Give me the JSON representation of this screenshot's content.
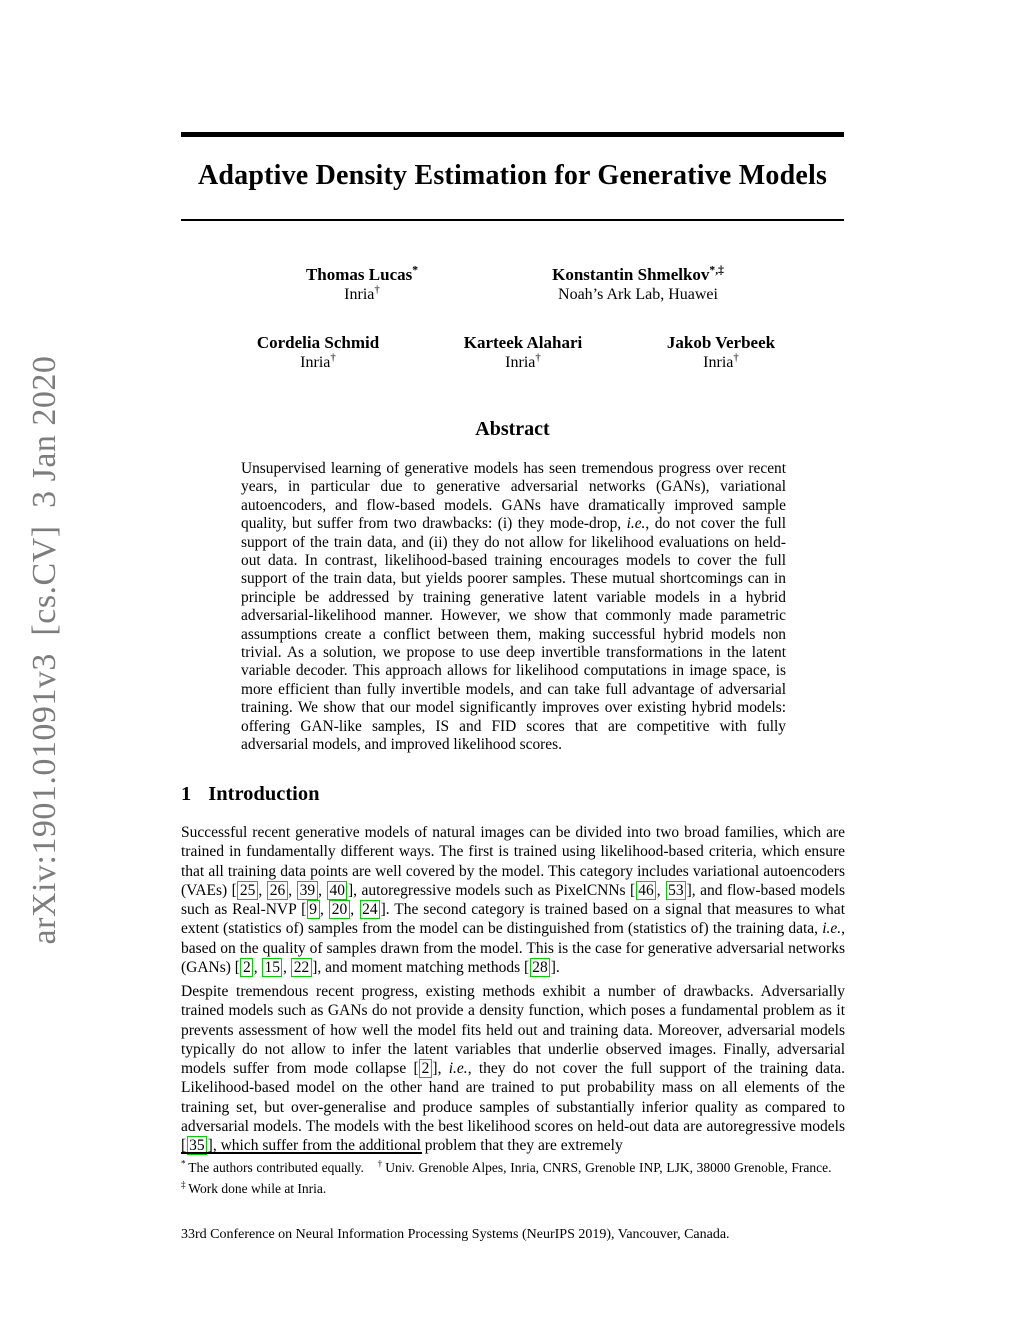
{
  "watermark": {
    "text": "arXiv:1901.01091v3 [cs.CV] 3 Jan 2020"
  },
  "header": {
    "title": "Adaptive Density Estimation for Generative Models"
  },
  "authors": {
    "row1": [
      {
        "name": "Thomas Lucas^*^",
        "affiliation": "Inria^†^"
      },
      {
        "name": "Konstantin Shmelkov^*,‡^",
        "affiliation": "Noah’s Ark Lab, Huawei"
      }
    ],
    "row2": [
      {
        "name": "Cordelia Schmid",
        "affiliation": "Inria^†^"
      },
      {
        "name": "Karteek Alahari",
        "affiliation": "Inria^†^"
      },
      {
        "name": "Jakob Verbeek",
        "affiliation": "Inria^†^"
      }
    ]
  },
  "abstract": {
    "heading": "Abstract",
    "body": "Unsupervised learning of generative models has seen tremendous progress over recent years, in particular due to generative adversarial networks (GANs), variational autoencoders, and flow-based models. GANs have dramatically improved sample quality, but suffer from two drawbacks: (i) they mode-drop, *i.e.*, do not cover the full support of the train data, and (ii) they do not allow for likelihood evaluations on held-out data. In contrast, likelihood-based training encourages models to cover the full support of the train data, but yields poorer samples. These mutual shortcomings can in principle be addressed by training generative latent variable models in a hybrid adversarial-likelihood manner. However, we show that commonly made parametric assumptions create a conflict between them, making successful hybrid models non trivial. As a solution, we propose to use deep invertible transformations in the latent variable decoder. This approach allows for likelihood computations in image space, is more efficient than fully invertible models, and can take full advantage of adversarial training. We show that our model significantly improves over existing hybrid models: offering GAN-like samples, IS and FID scores that are competitive with fully adversarial models, and improved likelihood scores."
  },
  "introduction": {
    "number": "1",
    "heading": "Introduction",
    "paragraphs": [
      "Successful recent generative models of natural images can be divided into two broad families, which are trained in fundamentally different ways. The first is trained using likelihood-based criteria, which ensure that all training data points are well covered by the model. This category includes variational autoencoders (VAEs) [{{25}}, {{26}}, {{39}}, {{40}}], autoregressive models such as PixelCNNs [{{46}}, {{53}}], and flow-based models such as Real-NVP [{{9}}, {{20}}, {{24}}]. The second category is trained based on a signal that measures to what extent (statistics of) samples from the model can be distinguished from (statistics of) the training data, *i.e.*, based on the quality of samples drawn from the model. This is the case for generative adversarial networks (GANs) [{{2}}, {{15}}, {{22}}], and moment matching methods [{{28}}].",
      "Despite tremendous recent progress, existing methods exhibit a number of drawbacks. Adversarially trained models such as GANs do not provide a density function, which poses a fundamental problem as it prevents assessment of how well the model fits held out and training data. Moreover, adversarial models typically do not allow to infer the latent variables that underlie observed images. Finally, adversarial models suffer from mode collapse [{{2}}], *i.e.*, they do not cover the full support of the training data. Likelihood-based model on the other hand are trained to put probability mass on all elements of the training set, but over-generalise and produce samples of substantially inferior quality as compared to adversarial models. The models with the best likelihood scores on held-out data are autoregressive models [{{35}}], which suffer from the additional problem that they are extremely"
    ]
  },
  "footnotes": {
    "text": "^*^ The authors contributed equally. ^†^ Univ. Grenoble Alpes, Inria, CNRS, Grenoble INP, LJK, 38000 Grenoble, France. ^‡^ Work done while at Inria."
  },
  "footer": {
    "conference_note": "33rd Conference on Neural Information Processing Systems (NeurIPS 2019), Vancouver, Canada."
  },
  "colors": {
    "citation_border": "#00cf00",
    "watermark_gray": "#7d7d7d",
    "text": "#000000",
    "background": "#ffffff"
  }
}
